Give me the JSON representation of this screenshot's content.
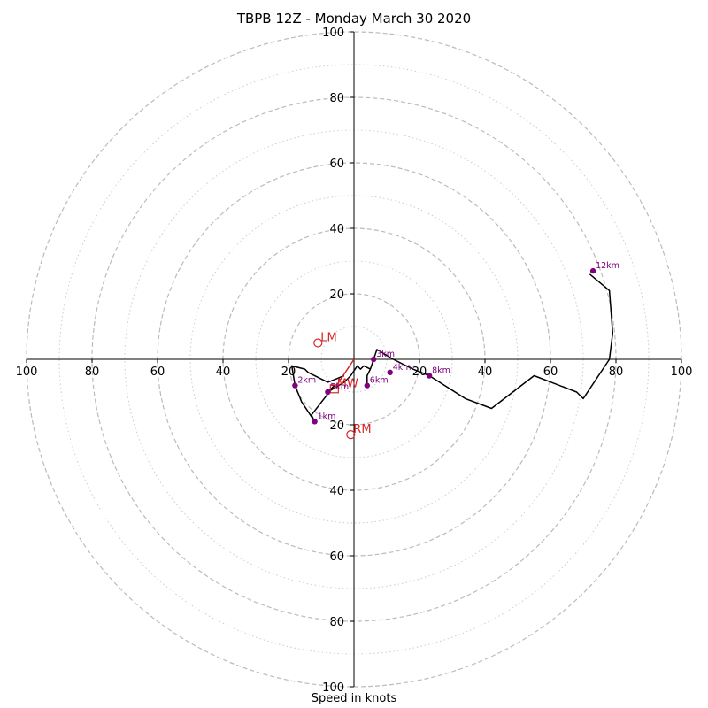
{
  "title": "TBPB 12Z - Monday March 30 2020",
  "xlabel": "Speed in knots",
  "chart_data": {
    "type": "hodograph",
    "title": "TBPB 12Z - Monday March 30 2020",
    "xlabel": "Speed in knots",
    "units": "knots",
    "xlim": [
      -100,
      100
    ],
    "ylim": [
      -100,
      100
    ],
    "major_rings": [
      20,
      40,
      60,
      80,
      100
    ],
    "minor_rings": [
      10,
      30,
      50,
      70,
      90
    ],
    "tick_labels": [
      "100",
      "80",
      "60",
      "40",
      "20",
      "20",
      "40",
      "60",
      "80",
      "100"
    ],
    "axis_tick_values": [
      -100,
      -80,
      -60,
      -40,
      -20,
      20,
      40,
      60,
      80,
      100
    ],
    "trace_color": "#000000",
    "marker_color": "#800080",
    "motion_color": "#d62728",
    "trace": [
      [
        -3,
        -5
      ],
      [
        -8,
        -7
      ],
      [
        -14,
        -4
      ],
      [
        -15,
        -3
      ],
      [
        -19,
        -2
      ],
      [
        -18,
        -8
      ],
      [
        -16,
        -13
      ],
      [
        -12,
        -19
      ],
      [
        -13,
        -17
      ],
      [
        -6,
        -8
      ],
      [
        -8,
        -10
      ],
      [
        -3,
        -7
      ],
      [
        -1,
        -5
      ],
      [
        1,
        -2
      ],
      [
        2,
        -3
      ],
      [
        3,
        -2
      ],
      [
        5,
        -3
      ],
      [
        4,
        -5
      ],
      [
        4,
        -8
      ],
      [
        4,
        -5
      ],
      [
        5,
        -3
      ],
      [
        7,
        3
      ],
      [
        12,
        0
      ],
      [
        18,
        -3
      ],
      [
        23,
        -5
      ],
      [
        34,
        -12
      ],
      [
        42,
        -15
      ],
      [
        55,
        -5
      ],
      [
        68,
        -10
      ],
      [
        70,
        -12
      ],
      [
        78,
        0
      ],
      [
        79,
        8
      ],
      [
        78,
        21
      ],
      [
        72,
        26
      ]
    ],
    "height_markers": [
      {
        "label": "1km",
        "u": -12,
        "v": -19
      },
      {
        "label": "2km",
        "u": -18,
        "v": -8
      },
      {
        "label": "5km",
        "u": -8,
        "v": -10
      },
      {
        "label": "3km",
        "u": 6,
        "v": 0
      },
      {
        "label": "4km",
        "u": 11,
        "v": -4
      },
      {
        "label": "6km",
        "u": 4,
        "v": -8
      },
      {
        "label": "8km",
        "u": 23,
        "v": -5
      },
      {
        "label": "12km",
        "u": 73,
        "v": 27
      }
    ],
    "storm_motion": [
      {
        "label": "LM",
        "u": -11,
        "v": 5,
        "marker": "circle"
      },
      {
        "label": "RM",
        "u": -1,
        "v": -23,
        "marker": "circle"
      },
      {
        "label": "MW",
        "u": -6,
        "v": -9,
        "marker": "square"
      }
    ],
    "shear_vector": {
      "from": [
        -6,
        -9
      ],
      "to": [
        0,
        0
      ]
    }
  }
}
